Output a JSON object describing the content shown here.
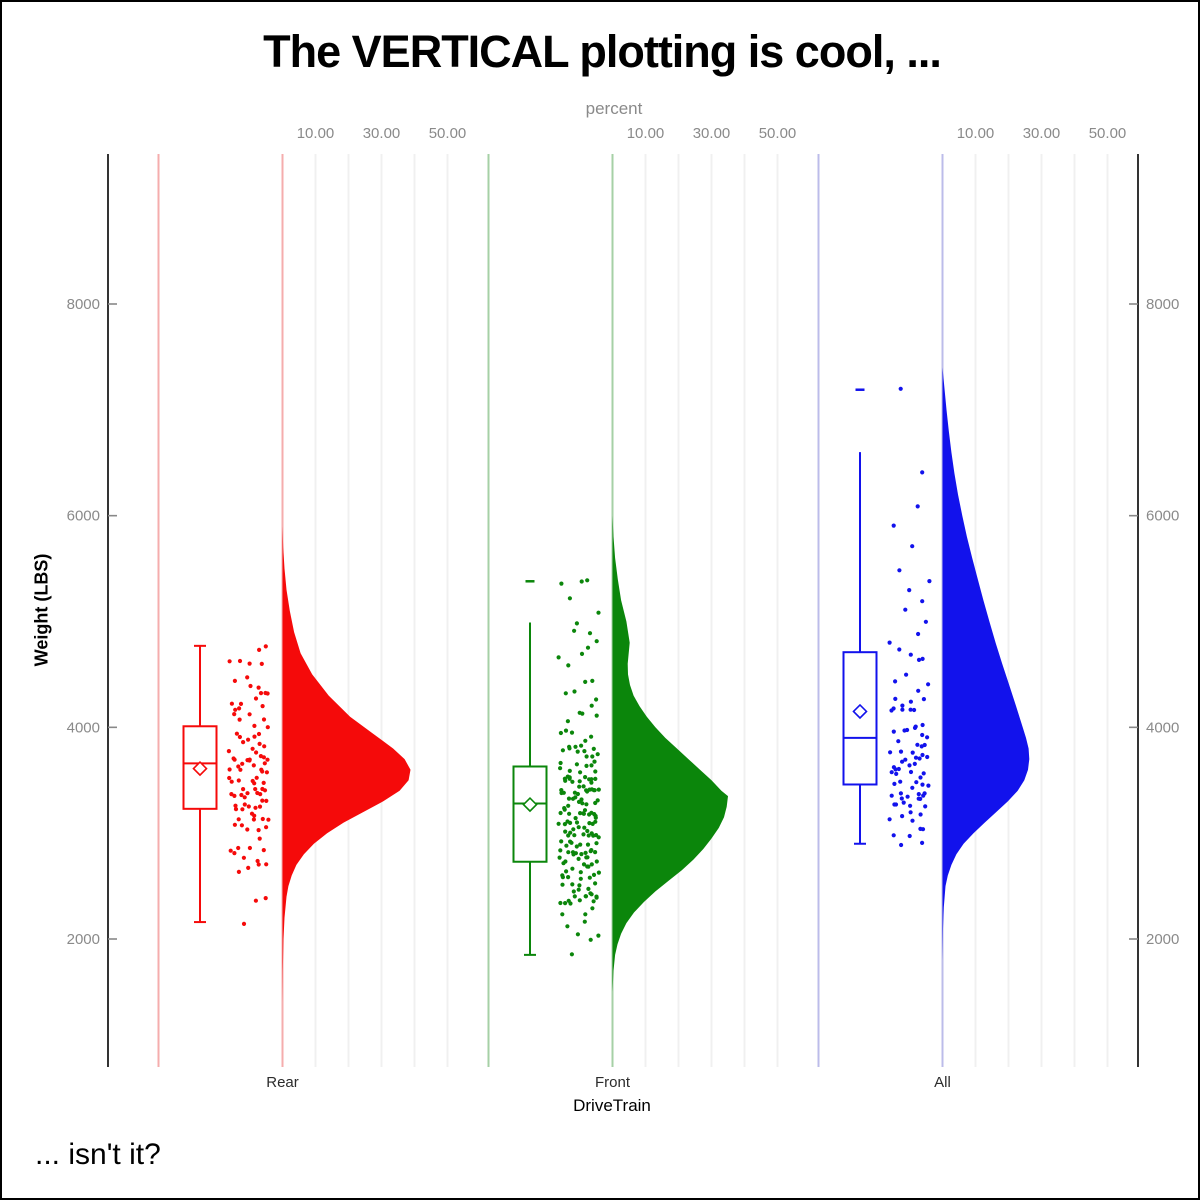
{
  "title": "The VERTICAL plotting is cool, ...",
  "footnote": "... isn't it?",
  "axes": {
    "top": {
      "label": "percent",
      "labeled_values": [
        10,
        30,
        50
      ],
      "tick_labels": [
        "10.00",
        "30.00",
        "50.00"
      ],
      "gridline_values": [
        10,
        20,
        30,
        40,
        50
      ],
      "range_per_group": [
        0,
        62
      ]
    },
    "left": {
      "label": "Weight (LBS)",
      "tick_values": [
        2000,
        4000,
        6000,
        8000
      ],
      "tick_labels": [
        "2000",
        "4000",
        "6000",
        "8000"
      ],
      "range": [
        790,
        9420
      ]
    },
    "right": {
      "tick_values": [
        2000,
        4000,
        6000,
        8000
      ],
      "tick_labels": [
        "2000",
        "4000",
        "6000",
        "8000"
      ]
    },
    "bottom": {
      "label": "DriveTrain"
    }
  },
  "palette": {
    "axis_line": "#000000",
    "tick_text": "#8a8a8a",
    "category_text": "#2b2b2b",
    "gridline": "#f0f0f0",
    "box_fill": "#ffffff"
  },
  "chart_data": {
    "type": "raincloud (box + jitter scatter + half-violin), vertical",
    "categories": [
      "Rear",
      "Front",
      "All"
    ],
    "value_axis": "Weight (LBS)",
    "density_axis": "percent",
    "series": [
      {
        "name": "Rear",
        "color": "#f50a0a",
        "light_color": "#f5adad",
        "box": {
          "q1": 3230,
          "median": 3660,
          "q3": 4010,
          "mean": 3610,
          "whisker_low": 2160,
          "whisker_high": 4770,
          "cap_low": true,
          "cap_high": true
        },
        "far_marks": [],
        "violin": [
          [
            5900,
            0
          ],
          [
            5700,
            0.2
          ],
          [
            5500,
            0.6
          ],
          [
            5300,
            1.2
          ],
          [
            5100,
            2.2
          ],
          [
            4900,
            3.5
          ],
          [
            4700,
            5.5
          ],
          [
            4500,
            9
          ],
          [
            4300,
            14
          ],
          [
            4100,
            20.5
          ],
          [
            3950,
            27
          ],
          [
            3800,
            33.5
          ],
          [
            3700,
            37
          ],
          [
            3600,
            38.8
          ],
          [
            3500,
            38.2
          ],
          [
            3400,
            35.5
          ],
          [
            3300,
            30.5
          ],
          [
            3200,
            24.5
          ],
          [
            3100,
            18.5
          ],
          [
            3000,
            13.5
          ],
          [
            2900,
            9.5
          ],
          [
            2800,
            6.5
          ],
          [
            2700,
            4.2
          ],
          [
            2600,
            2.8
          ],
          [
            2500,
            1.8
          ],
          [
            2400,
            1.2
          ],
          [
            2200,
            0.6
          ],
          [
            2000,
            0.3
          ],
          [
            1700,
            0.1
          ],
          [
            1400,
            0
          ]
        ],
        "scatter_bins": [
          [
            2160,
            1
          ],
          [
            2350,
            1
          ],
          [
            2400,
            1
          ],
          [
            2600,
            2
          ],
          [
            2700,
            2
          ],
          [
            2800,
            3
          ],
          [
            2900,
            4
          ],
          [
            3000,
            4
          ],
          [
            3100,
            5
          ],
          [
            3200,
            6
          ],
          [
            3300,
            7
          ],
          [
            3350,
            6
          ],
          [
            3450,
            7
          ],
          [
            3550,
            7
          ],
          [
            3650,
            8
          ],
          [
            3750,
            7
          ],
          [
            3850,
            6
          ],
          [
            3950,
            5
          ],
          [
            4050,
            5
          ],
          [
            4150,
            4
          ],
          [
            4250,
            3
          ],
          [
            4350,
            3
          ],
          [
            4450,
            3
          ],
          [
            4550,
            2
          ],
          [
            4650,
            2
          ],
          [
            4720,
            1
          ],
          [
            4770,
            1
          ]
        ]
      },
      {
        "name": "Front",
        "color": "#0b860b",
        "light_color": "#a6d0a6",
        "box": {
          "q1": 2730,
          "median": 3280,
          "q3": 3630,
          "mean": 3270,
          "whisker_low": 1850,
          "whisker_high": 4990,
          "cap_low": true,
          "cap_high": false
        },
        "far_marks": [
          5380
        ],
        "violin": [
          [
            6000,
            0
          ],
          [
            5800,
            0.3
          ],
          [
            5600,
            0.8
          ],
          [
            5400,
            1.6
          ],
          [
            5200,
            2.6
          ],
          [
            5000,
            4.2
          ],
          [
            4800,
            5.2
          ],
          [
            4600,
            4.6
          ],
          [
            4500,
            4.7
          ],
          [
            4400,
            5.3
          ],
          [
            4300,
            6.4
          ],
          [
            4200,
            8.2
          ],
          [
            4100,
            10.4
          ],
          [
            4000,
            13
          ],
          [
            3900,
            16
          ],
          [
            3800,
            19.5
          ],
          [
            3700,
            23
          ],
          [
            3600,
            26.5
          ],
          [
            3500,
            30
          ],
          [
            3400,
            33
          ],
          [
            3350,
            35
          ],
          [
            3250,
            34.6
          ],
          [
            3150,
            33.8
          ],
          [
            3050,
            32.2
          ],
          [
            2950,
            30
          ],
          [
            2850,
            27.5
          ],
          [
            2750,
            24.5
          ],
          [
            2650,
            21
          ],
          [
            2550,
            17
          ],
          [
            2450,
            13
          ],
          [
            2350,
            9.5
          ],
          [
            2250,
            6.5
          ],
          [
            2150,
            4.2
          ],
          [
            2050,
            2.6
          ],
          [
            1950,
            1.5
          ],
          [
            1850,
            0.8
          ],
          [
            1700,
            0.3
          ],
          [
            1500,
            0
          ]
        ],
        "scatter_bins": [
          [
            1850,
            1
          ],
          [
            2000,
            1
          ],
          [
            2100,
            2
          ],
          [
            2200,
            3
          ],
          [
            2300,
            5
          ],
          [
            2400,
            7
          ],
          [
            2450,
            6
          ],
          [
            2550,
            8
          ],
          [
            2650,
            9
          ],
          [
            2750,
            10
          ],
          [
            2850,
            11
          ],
          [
            2950,
            11
          ],
          [
            3050,
            11
          ],
          [
            3150,
            12
          ],
          [
            3250,
            12
          ],
          [
            3350,
            12
          ],
          [
            3450,
            11
          ],
          [
            3550,
            10
          ],
          [
            3650,
            8
          ],
          [
            3750,
            6
          ],
          [
            3850,
            5
          ],
          [
            3950,
            4
          ],
          [
            4050,
            3
          ],
          [
            4150,
            2
          ],
          [
            4250,
            2
          ],
          [
            4350,
            2
          ],
          [
            4450,
            1
          ],
          [
            4600,
            1
          ],
          [
            4700,
            2
          ],
          [
            4800,
            2
          ],
          [
            4900,
            2
          ],
          [
            5000,
            1
          ],
          [
            5100,
            1
          ],
          [
            5200,
            1
          ],
          [
            5300,
            2
          ],
          [
            5380,
            1
          ]
        ]
      },
      {
        "name": "All",
        "color": "#1212ec",
        "light_color": "#bcbcea",
        "box": {
          "q1": 3460,
          "median": 3900,
          "q3": 4710,
          "mean": 4150,
          "whisker_low": 2900,
          "whisker_high": 6600,
          "cap_low": true,
          "cap_high": false
        },
        "far_marks": [
          7190
        ],
        "violin": [
          [
            7400,
            0
          ],
          [
            7200,
            0.6
          ],
          [
            7000,
            1.2
          ],
          [
            6800,
            1.9
          ],
          [
            6600,
            2.7
          ],
          [
            6400,
            3.6
          ],
          [
            6200,
            4.7
          ],
          [
            6000,
            6
          ],
          [
            5800,
            7.4
          ],
          [
            5600,
            9
          ],
          [
            5400,
            10.7
          ],
          [
            5200,
            12.4
          ],
          [
            5000,
            14.2
          ],
          [
            4800,
            16.1
          ],
          [
            4600,
            18.1
          ],
          [
            4400,
            20.2
          ],
          [
            4200,
            22.3
          ],
          [
            4000,
            24.3
          ],
          [
            3900,
            25.3
          ],
          [
            3800,
            26.1
          ],
          [
            3700,
            26.3
          ],
          [
            3600,
            25.9
          ],
          [
            3500,
            24.8
          ],
          [
            3400,
            22.8
          ],
          [
            3300,
            19.8
          ],
          [
            3200,
            16.3
          ],
          [
            3100,
            12.8
          ],
          [
            3000,
            9.4
          ],
          [
            2900,
            6.4
          ],
          [
            2800,
            4.2
          ],
          [
            2700,
            2.7
          ],
          [
            2600,
            1.6
          ],
          [
            2500,
            0.9
          ],
          [
            2300,
            0.4
          ],
          [
            2100,
            0.15
          ],
          [
            1800,
            0
          ]
        ],
        "scatter_bins": [
          [
            2900,
            2
          ],
          [
            3000,
            3
          ],
          [
            3100,
            4
          ],
          [
            3200,
            5
          ],
          [
            3300,
            6
          ],
          [
            3400,
            6
          ],
          [
            3500,
            7
          ],
          [
            3600,
            7
          ],
          [
            3700,
            6
          ],
          [
            3800,
            6
          ],
          [
            3900,
            5
          ],
          [
            4000,
            4
          ],
          [
            4100,
            4
          ],
          [
            4200,
            3
          ],
          [
            4300,
            3
          ],
          [
            4400,
            2
          ],
          [
            4500,
            2
          ],
          [
            4600,
            2
          ],
          [
            4700,
            2
          ],
          [
            4800,
            1
          ],
          [
            4900,
            1
          ],
          [
            5000,
            1
          ],
          [
            5100,
            1
          ],
          [
            5200,
            1
          ],
          [
            5300,
            1
          ],
          [
            5400,
            1
          ],
          [
            5500,
            1
          ],
          [
            5700,
            1
          ],
          [
            5900,
            1
          ],
          [
            6100,
            1
          ],
          [
            6400,
            1
          ],
          [
            7190,
            1
          ]
        ]
      }
    ]
  }
}
